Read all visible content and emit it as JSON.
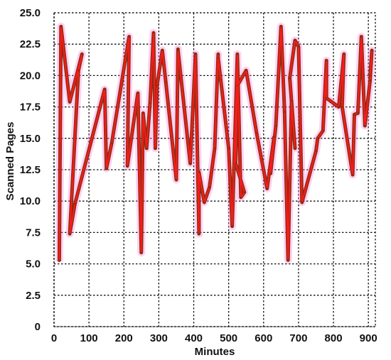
{
  "chart_data": {
    "type": "line",
    "title": "",
    "xlabel": "Minutes",
    "ylabel": "Scanned Pages",
    "xlim": [
      0,
      920
    ],
    "ylim": [
      0,
      25
    ],
    "x_ticks": [
      0,
      100,
      200,
      300,
      400,
      500,
      600,
      700,
      800,
      900
    ],
    "y_ticks": [
      "0",
      "2.5",
      "5.0",
      "7.5",
      "10.0",
      "12.5",
      "15.0",
      "17.5",
      "20.0",
      "22.5",
      "25.0"
    ],
    "grid": true,
    "grid_style": "dotted",
    "legend": "none",
    "colors": {
      "glow": "#ff7ad9",
      "core": "#ff1a1a",
      "outline": "#8b2e12"
    },
    "series": [
      {
        "x": [
          15,
          20,
          45,
          80,
          70,
          45,
          60,
          145,
          150,
          165,
          215,
          210,
          240,
          250,
          255,
          265,
          275,
          285,
          290,
          295,
          310,
          320,
          350,
          355,
          355,
          390,
          405,
          415,
          415,
          430,
          445,
          460,
          470,
          470,
          500,
          510,
          525,
          535,
          545,
          520,
          525,
          550,
          580,
          610,
          630,
          620,
          635,
          650,
          660,
          670,
          680,
          690,
          675,
          690,
          700,
          710,
          750,
          755,
          770,
          780,
          780,
          815,
          830,
          825,
          855,
          860,
          870,
          880,
          890,
          905,
          910,
          905
        ],
        "y": [
          5.2,
          23.9,
          17.9,
          21.7,
          20.4,
          7.4,
          9.8,
          18.9,
          12.6,
          14.6,
          23.1,
          12.8,
          18.6,
          5.9,
          17.0,
          14.2,
          17.8,
          23.4,
          14.2,
          19.2,
          22.0,
          19.5,
          11.7,
          22.1,
          22.0,
          13.0,
          21.7,
          7.4,
          12.3,
          9.9,
          11.1,
          14.2,
          21.7,
          21.4,
          14.2,
          8.0,
          21.7,
          10.3,
          10.7,
          13.0,
          19.2,
          20.4,
          15.4,
          11.0,
          15.1,
          12.2,
          16.0,
          23.9,
          17.1,
          5.3,
          18.0,
          14.2,
          19.8,
          22.8,
          22.3,
          9.9,
          14.0,
          15.0,
          15.6,
          21.2,
          18.2,
          17.5,
          21.7,
          17.5,
          12.1,
          16.9,
          17.0,
          23.1,
          16.0,
          19.6,
          22.0,
          20.0
        ]
      }
    ]
  }
}
